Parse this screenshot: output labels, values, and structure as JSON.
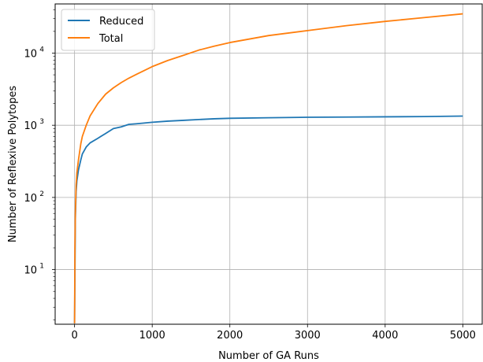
{
  "chart_data": {
    "type": "line",
    "title": "",
    "xlabel": "Number of GA Runs",
    "ylabel": "Number of Reflexive Polytopes",
    "xlim": [
      -250,
      5250
    ],
    "ylim": [
      1.75,
      48000
    ],
    "yscale": "log",
    "grid": true,
    "legend_position": "top-left",
    "x_ticks": [
      0,
      1000,
      2000,
      3000,
      4000,
      5000
    ],
    "x_tick_labels": [
      "0",
      "1000",
      "2000",
      "3000",
      "4000",
      "5000"
    ],
    "y_ticks": [
      10,
      100,
      1000,
      10000
    ],
    "y_tick_labels": [
      {
        "base": "10",
        "exp": "1"
      },
      {
        "base": "10",
        "exp": "2"
      },
      {
        "base": "10",
        "exp": "3"
      },
      {
        "base": "10",
        "exp": "4"
      }
    ],
    "series": [
      {
        "name": "Reduced",
        "color": "#1f77b4",
        "points": [
          [
            0,
            1.8
          ],
          [
            5,
            10
          ],
          [
            10,
            50
          ],
          [
            20,
            120
          ],
          [
            30,
            170
          ],
          [
            50,
            240
          ],
          [
            80,
            330
          ],
          [
            100,
            400
          ],
          [
            150,
            500
          ],
          [
            200,
            570
          ],
          [
            300,
            660
          ],
          [
            400,
            770
          ],
          [
            500,
            900
          ],
          [
            600,
            950
          ],
          [
            700,
            1030
          ],
          [
            800,
            1050
          ],
          [
            1000,
            1100
          ],
          [
            1200,
            1140
          ],
          [
            1400,
            1170
          ],
          [
            1600,
            1200
          ],
          [
            1800,
            1230
          ],
          [
            2000,
            1250
          ],
          [
            2500,
            1270
          ],
          [
            3000,
            1290
          ],
          [
            3500,
            1300
          ],
          [
            4000,
            1310
          ],
          [
            4500,
            1320
          ],
          [
            5000,
            1340
          ]
        ]
      },
      {
        "name": "Total",
        "color": "#ff7f0e",
        "points": [
          [
            0,
            1.8
          ],
          [
            5,
            20
          ],
          [
            10,
            60
          ],
          [
            20,
            150
          ],
          [
            30,
            220
          ],
          [
            50,
            330
          ],
          [
            80,
            550
          ],
          [
            100,
            700
          ],
          [
            150,
            1000
          ],
          [
            200,
            1350
          ],
          [
            300,
            2000
          ],
          [
            400,
            2700
          ],
          [
            500,
            3300
          ],
          [
            600,
            3900
          ],
          [
            700,
            4500
          ],
          [
            800,
            5100
          ],
          [
            1000,
            6500
          ],
          [
            1200,
            7900
          ],
          [
            1400,
            9300
          ],
          [
            1600,
            11000
          ],
          [
            1800,
            12500
          ],
          [
            2000,
            14000
          ],
          [
            2500,
            17500
          ],
          [
            3000,
            20500
          ],
          [
            3500,
            24000
          ],
          [
            4000,
            27500
          ],
          [
            4500,
            31000
          ],
          [
            5000,
            35000
          ]
        ]
      }
    ]
  }
}
